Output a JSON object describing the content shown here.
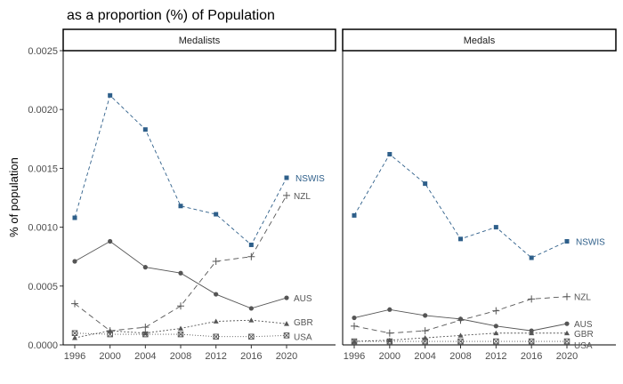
{
  "chart_data": {
    "type": "line",
    "title": "as a proportion (%) of Population",
    "ylabel": "% of population",
    "xlabel": "",
    "x": [
      1996,
      2000,
      2004,
      2008,
      2012,
      2016,
      2020
    ],
    "ylim": [
      0,
      0.0025
    ],
    "yticks": [
      "0.0000",
      "0.0005",
      "0.0010",
      "0.0015",
      "0.0020",
      "0.0025"
    ],
    "grid": false,
    "legend": "direct labels at line ends",
    "colors": {
      "NSWIS": "#2e5f8a",
      "other": "#555555"
    },
    "panels": [
      {
        "label": "Medalists",
        "series": [
          {
            "name": "NSWIS",
            "values": [
              0.00108,
              0.00212,
              0.00183,
              0.00118,
              0.00111,
              0.00085,
              0.00142
            ]
          },
          {
            "name": "NZL",
            "values": [
              0.00035,
              0.00012,
              0.00015,
              0.00033,
              0.00071,
              0.00075,
              0.00127
            ]
          },
          {
            "name": "AUS",
            "values": [
              0.00071,
              0.00088,
              0.00066,
              0.00061,
              0.00043,
              0.00031,
              0.0004
            ]
          },
          {
            "name": "GBR",
            "values": [
              6e-05,
              0.00012,
              0.0001,
              0.00014,
              0.0002,
              0.00021,
              0.00018
            ]
          },
          {
            "name": "USA",
            "values": [
              0.0001,
              9e-05,
              9e-05,
              9e-05,
              7e-05,
              7e-05,
              8e-05
            ]
          }
        ]
      },
      {
        "label": "Medals",
        "series": [
          {
            "name": "NSWIS",
            "values": [
              0.0011,
              0.00162,
              0.00137,
              0.0009,
              0.001,
              0.00074,
              0.00088
            ]
          },
          {
            "name": "NZL",
            "values": [
              0.00016,
              0.0001,
              0.00012,
              0.00021,
              0.00029,
              0.00039,
              0.00041
            ]
          },
          {
            "name": "AUS",
            "values": [
              0.00023,
              0.0003,
              0.00025,
              0.00022,
              0.00016,
              0.00012,
              0.00018
            ]
          },
          {
            "name": "GBR",
            "values": [
              3e-05,
              4e-05,
              6e-05,
              8e-05,
              0.0001,
              0.0001,
              0.0001
            ]
          },
          {
            "name": "USA",
            "values": [
              3e-05,
              3e-05,
              3e-05,
              3e-05,
              3e-05,
              3e-05,
              3e-05
            ]
          }
        ]
      }
    ]
  }
}
